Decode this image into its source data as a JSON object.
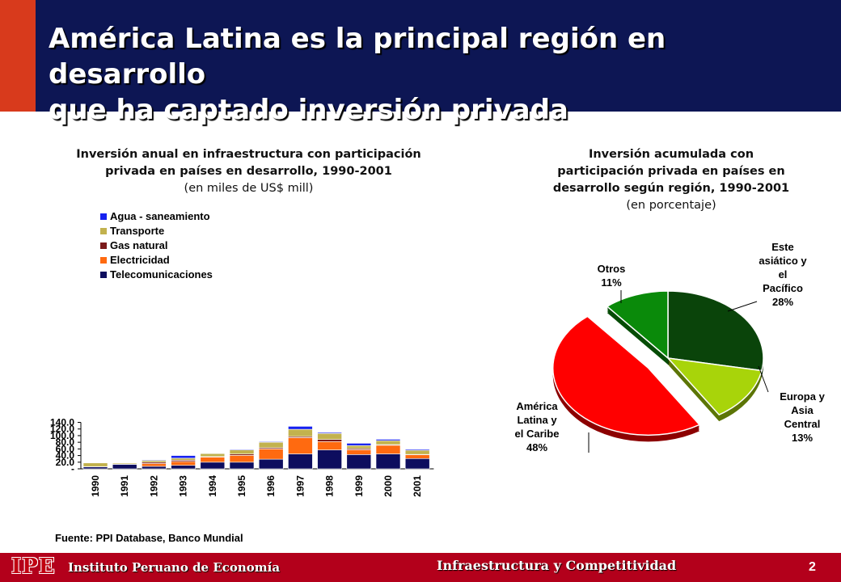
{
  "header": {
    "title_line1": "América Latina es la principal región en desarrollo",
    "title_line2": "que ha captado inversión privada"
  },
  "bar_caption": {
    "line1": "Inversión anual en infraestructura con participación",
    "line2": "privada en países en desarrollo, 1990-2001",
    "line3": "(en miles de US$ mill)"
  },
  "pie_caption": {
    "line1": "Inversión acumulada con",
    "line2": "participación privada en países en",
    "line3": "desarrollo según región, 1990-2001",
    "line4": "(en porcentaje)"
  },
  "source": "Fuente: PPI Database, Banco Mundial",
  "footer": {
    "logo": "IPE",
    "org": "Instituto Peruano de Economía",
    "section": "Infraestructura y Competitividad",
    "page": "2"
  },
  "chart_data": [
    {
      "type": "bar",
      "stacked": true,
      "categories": [
        "1990",
        "1991",
        "1992",
        "1993",
        "1994",
        "1995",
        "1996",
        "1997",
        "1998",
        "1999",
        "2000",
        "2001"
      ],
      "ylim": [
        0,
        140
      ],
      "yticks": [
        0,
        20,
        40,
        60,
        80,
        100,
        120,
        140
      ],
      "ytick_labels": [
        "-",
        "20.0",
        "40.0",
        "60.0",
        "80.0",
        "100.0",
        "120.0",
        "140.0"
      ],
      "legend_position": "top-left",
      "grid": false,
      "series": [
        {
          "name": "Telecomunicaciones",
          "color": "#0d0d5e",
          "values": [
            6,
            13.5,
            7.5,
            10.5,
            20,
            20,
            29,
            45,
            57,
            43,
            45,
            31
          ]
        },
        {
          "name": "Electricidad",
          "color": "#ff6a10",
          "values": [
            0.5,
            1,
            8.5,
            11.5,
            15.5,
            20.5,
            31,
            49,
            25,
            14.5,
            26,
            11.5
          ]
        },
        {
          "name": "Gas natural",
          "color": "#7b1a1a",
          "values": [
            0.3,
            0.3,
            4,
            4,
            1.5,
            4,
            3.5,
            3.5,
            6.5,
            3.5,
            2,
            1
          ]
        },
        {
          "name": "Transporte",
          "color": "#c2b24e",
          "values": [
            11,
            3,
            5,
            6,
            9,
            12.5,
            16.5,
            21.5,
            18,
            9,
            12,
            12.5
          ]
        },
        {
          "name": "Agua - saneamiento",
          "color": "#1621f0",
          "values": [
            0,
            0,
            2,
            8,
            1,
            2,
            2,
            9,
            3,
            7,
            4,
            3
          ]
        }
      ]
    },
    {
      "type": "pie",
      "slices": [
        {
          "label_lines": [
            "Este",
            "asiático y",
            "el",
            "Pacífico",
            "28%"
          ],
          "value": 28,
          "color": "#0a440a"
        },
        {
          "label_lines": [
            "Europa y",
            "Asia",
            "Central",
            "13%"
          ],
          "value": 13,
          "color": "#a8d40a"
        },
        {
          "label_lines": [
            "América",
            "Latina y",
            "el Caribe",
            "48%"
          ],
          "value": 48,
          "color": "#ff0000",
          "exploded": true
        },
        {
          "label_lines": [
            "Otros",
            "11%"
          ],
          "value": 11,
          "color": "#0a8a0a"
        }
      ]
    }
  ]
}
